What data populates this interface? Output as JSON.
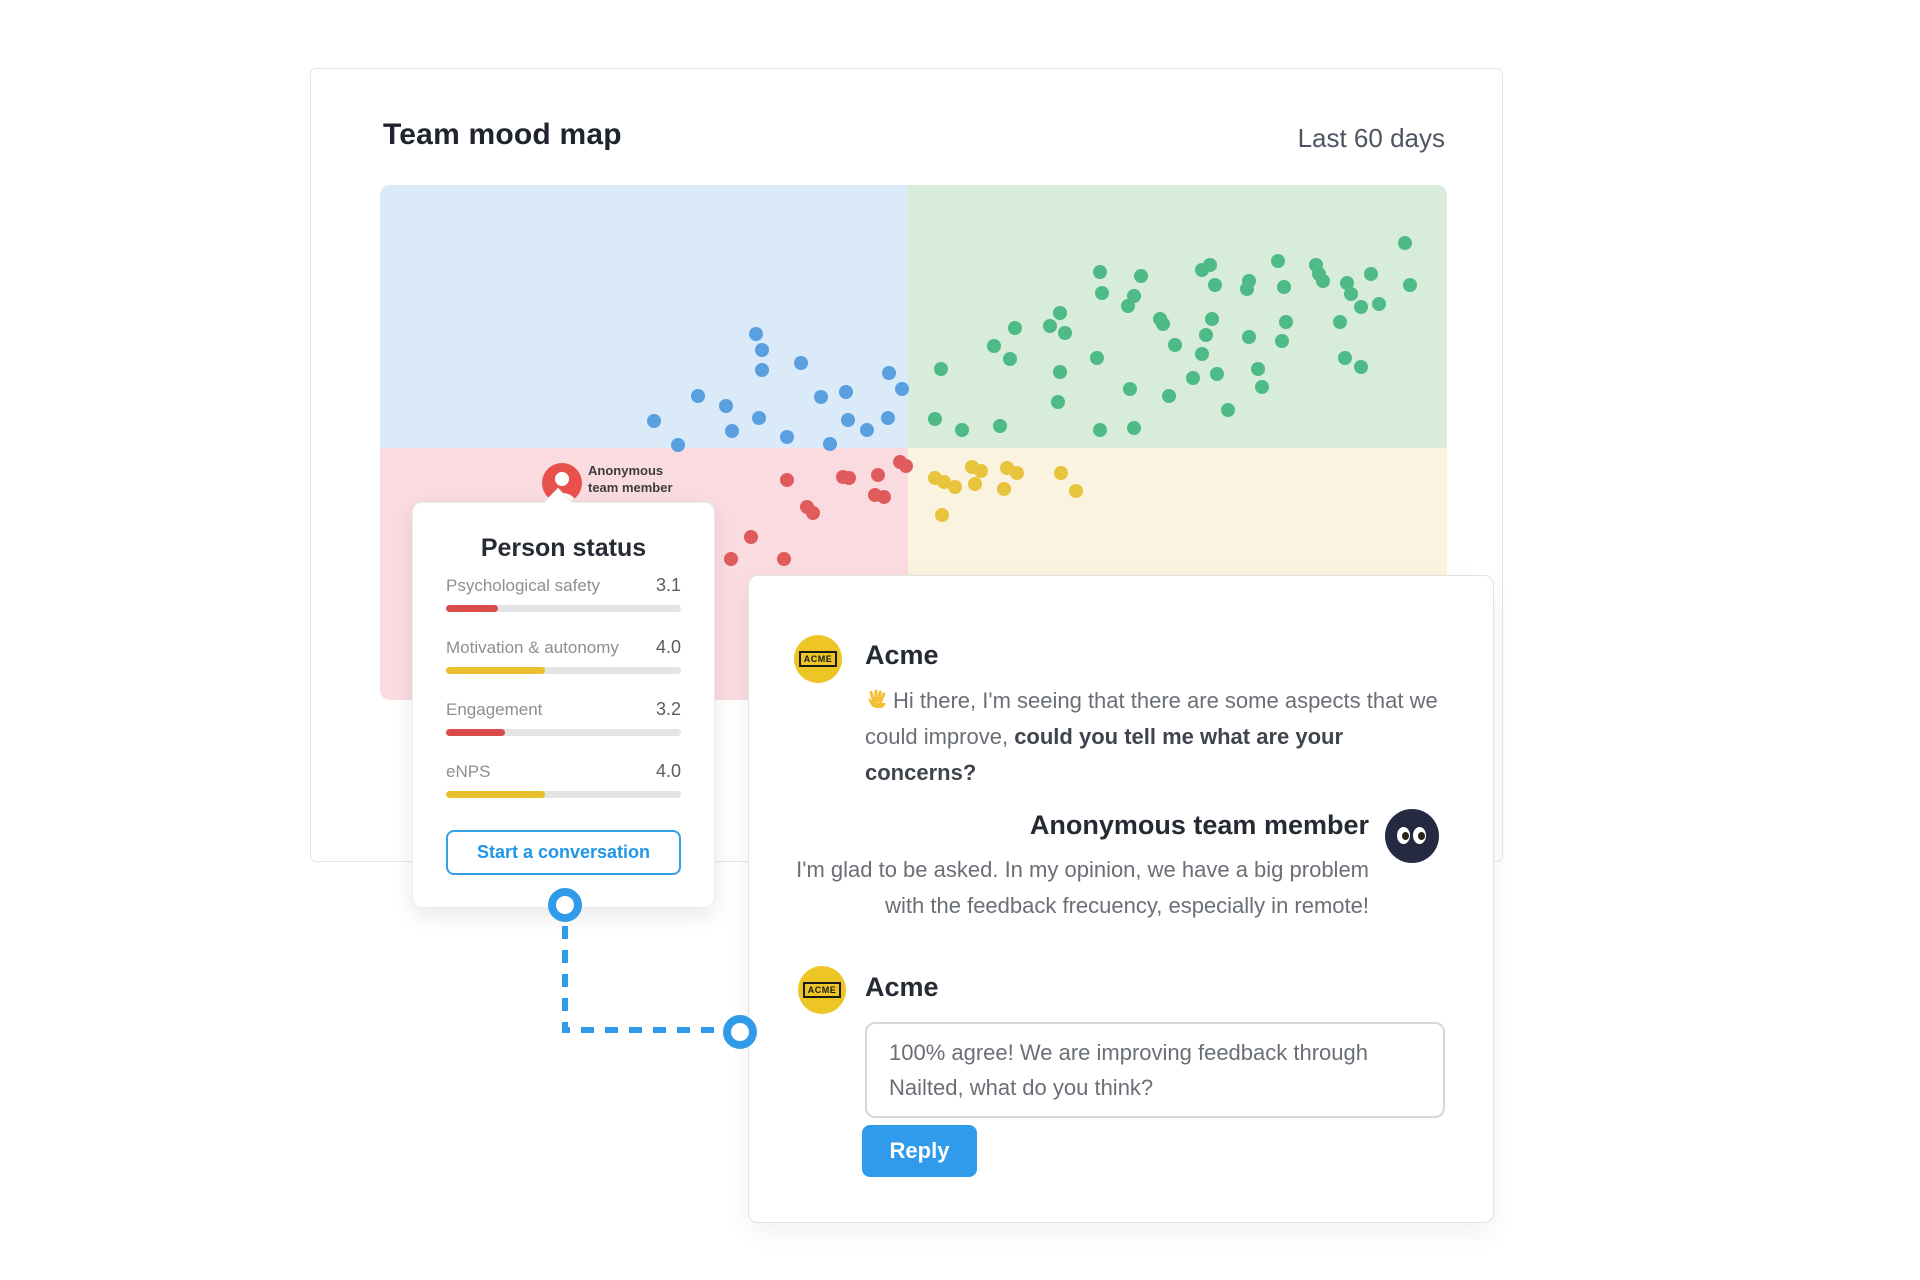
{
  "mood_card": {
    "title": "Team mood map",
    "period": "Last 60 days"
  },
  "chart_data": {
    "type": "scatter",
    "title": "Team mood map",
    "period": "Last 60 days",
    "description": "Quadrant mood map, no axes or tick labels shown; points are team members positioned by mood, coordinates in percent of plot area (x right, y down)",
    "grid": false,
    "legend": "none",
    "quadrants": [
      {
        "position": "top-left",
        "color": "#dbeaf8"
      },
      {
        "position": "top-right",
        "color": "#d7ecdb"
      },
      {
        "position": "bottom-left",
        "color": "#fadce0"
      },
      {
        "position": "bottom-right",
        "color": "#faf3e0"
      }
    ],
    "series": [
      {
        "name": "blue",
        "color": "#5a9fe0",
        "points": [
          [
            35.2,
            29.0
          ],
          [
            35.8,
            32.0
          ],
          [
            35.8,
            35.9
          ],
          [
            39.5,
            34.6
          ],
          [
            29.8,
            41.0
          ],
          [
            32.4,
            42.9
          ],
          [
            25.7,
            45.8
          ],
          [
            27.9,
            50.5
          ],
          [
            33.0,
            47.8
          ],
          [
            35.5,
            45.2
          ],
          [
            38.1,
            48.9
          ],
          [
            41.3,
            41.2
          ],
          [
            42.2,
            50.3
          ],
          [
            43.7,
            40.2
          ],
          [
            43.9,
            45.6
          ],
          [
            45.6,
            47.6
          ],
          [
            47.6,
            45.2
          ],
          [
            47.7,
            36.5
          ],
          [
            48.9,
            39.6
          ]
        ]
      },
      {
        "name": "green",
        "color": "#4eba85",
        "points": [
          [
            52.6,
            35.7
          ],
          [
            54.5,
            47.6
          ],
          [
            52.0,
            45.4
          ],
          [
            57.5,
            31.3
          ],
          [
            58.1,
            46.8
          ],
          [
            59.0,
            33.8
          ],
          [
            59.5,
            27.8
          ],
          [
            62.8,
            27.4
          ],
          [
            63.7,
            24.9
          ],
          [
            64.2,
            28.7
          ],
          [
            63.7,
            36.3
          ],
          [
            63.5,
            42.1
          ],
          [
            67.5,
            16.9
          ],
          [
            67.7,
            21.0
          ],
          [
            67.2,
            33.6
          ],
          [
            67.5,
            47.6
          ],
          [
            70.1,
            23.5
          ],
          [
            70.7,
            21.6
          ],
          [
            71.3,
            17.7
          ],
          [
            70.3,
            39.6
          ],
          [
            70.7,
            47.2
          ],
          [
            73.1,
            26.0
          ],
          [
            73.4,
            27.0
          ],
          [
            74.5,
            31.1
          ],
          [
            73.9,
            41.0
          ],
          [
            77.0,
            16.5
          ],
          [
            77.8,
            15.5
          ],
          [
            78.3,
            19.4
          ],
          [
            78.0,
            26.0
          ],
          [
            77.4,
            29.1
          ],
          [
            77.0,
            32.8
          ],
          [
            76.2,
            37.5
          ],
          [
            78.4,
            36.7
          ],
          [
            81.4,
            18.6
          ],
          [
            81.3,
            20.2
          ],
          [
            81.4,
            29.5
          ],
          [
            82.3,
            35.7
          ],
          [
            82.7,
            39.2
          ],
          [
            84.2,
            14.8
          ],
          [
            84.7,
            19.8
          ],
          [
            84.9,
            26.6
          ],
          [
            84.5,
            30.3
          ],
          [
            79.5,
            43.7
          ],
          [
            87.7,
            15.5
          ],
          [
            88.4,
            18.6
          ],
          [
            88.0,
            17.3
          ],
          [
            90.6,
            19.0
          ],
          [
            91.0,
            21.2
          ],
          [
            91.9,
            23.7
          ],
          [
            90.0,
            26.6
          ],
          [
            90.4,
            33.6
          ],
          [
            91.9,
            35.3
          ],
          [
            92.9,
            17.3
          ],
          [
            93.6,
            23.1
          ],
          [
            96.1,
            11.3
          ],
          [
            96.5,
            19.4
          ]
        ]
      },
      {
        "name": "red",
        "color": "#e05c5c",
        "points": [
          [
            38.1,
            57.3
          ],
          [
            44.0,
            56.9
          ],
          [
            46.7,
            56.3
          ],
          [
            49.3,
            54.6
          ],
          [
            47.2,
            60.6
          ],
          [
            40.6,
            63.7
          ],
          [
            37.9,
            72.6
          ],
          [
            34.8,
            68.3
          ],
          [
            32.9,
            72.6
          ],
          [
            48.7,
            53.8
          ],
          [
            43.4,
            56.7
          ],
          [
            46.4,
            60.2
          ],
          [
            40.0,
            62.5
          ]
        ]
      },
      {
        "name": "yellow",
        "color": "#e8c33c",
        "points": [
          [
            52.9,
            57.7
          ],
          [
            53.9,
            58.6
          ],
          [
            55.8,
            58.1
          ],
          [
            56.3,
            55.5
          ],
          [
            58.5,
            59.0
          ],
          [
            59.7,
            55.9
          ],
          [
            63.8,
            55.9
          ],
          [
            65.2,
            59.4
          ],
          [
            52.7,
            64.1
          ],
          [
            55.5,
            54.8
          ],
          [
            52.0,
            56.9
          ],
          [
            58.8,
            55.0
          ]
        ]
      }
    ],
    "highlighted_point": {
      "label": "Anonymous team member",
      "x_pct": 17.1,
      "y_pct": 57.9,
      "color": "#e8504c",
      "marker": "red circle with white person silhouette"
    }
  },
  "marker_label": {
    "line1": "Anonymous",
    "line2": "team member"
  },
  "person_status": {
    "title": "Person status",
    "metrics": [
      {
        "label": "Psychological safety",
        "value": "3.1",
        "fill_pct": 22,
        "color": "#da4b4b"
      },
      {
        "label": "Motivation & autonomy",
        "value": "4.0",
        "fill_pct": 42,
        "color": "#e9bf2e"
      },
      {
        "label": "Engagement",
        "value": "3.2",
        "fill_pct": 25,
        "color": "#da4b4b"
      },
      {
        "label": "eNPS",
        "value": "4.0",
        "fill_pct": 42,
        "color": "#e9bf2e"
      }
    ],
    "button_label": "Start a conversation"
  },
  "conversation": {
    "acme_logo_text": "ACME",
    "messages": [
      {
        "author": "Acme",
        "emoji": "👋",
        "text_prefix": "Hi there, I'm seeing that there are some aspects that we could improve, ",
        "text_bold": "could you tell me what are your concerns?",
        "text_suffix": ""
      },
      {
        "author": "Anonymous team member",
        "text": "I'm glad to be asked. In my opinion, we have a big problem with the feedback frecuency, especially in remote!"
      },
      {
        "author": "Acme",
        "text": "100% agree! We are improving feedback through Nailted, what do you think?"
      }
    ],
    "reply_label": "Reply"
  },
  "colors": {
    "accent_blue": "#2f9bea",
    "quadrant_blue": "#dbeaf8",
    "quadrant_green": "#d7ecdb",
    "quadrant_pink": "#fadce0",
    "quadrant_cream": "#faf3e0",
    "bar_red": "#da4b4b",
    "bar_yellow": "#e9bf2e",
    "acme_yellow": "#edc626",
    "anon_navy": "#252a40"
  }
}
